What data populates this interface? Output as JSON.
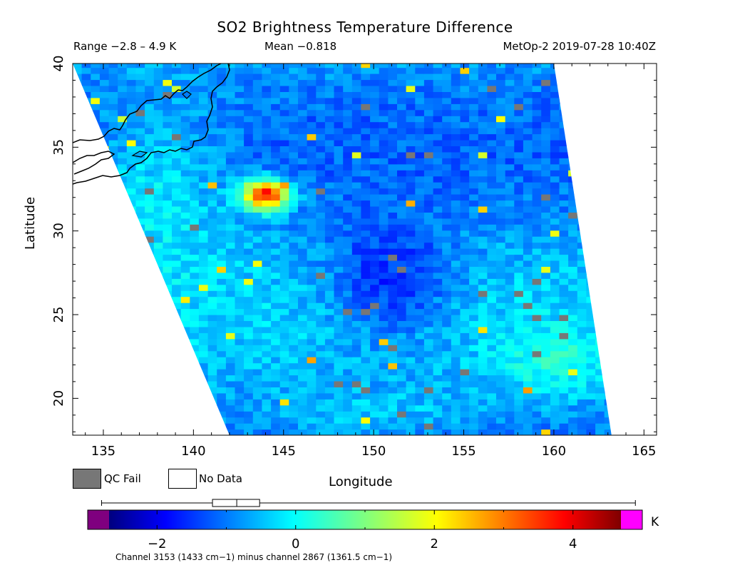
{
  "header": {
    "title": "SO2 Brightness Temperature Difference",
    "range": "Range −2.8 – 4.9 K",
    "mean": "Mean −0.818",
    "satellite_time": "MetOp-2 2019-07-28 10:40Z"
  },
  "legend": {
    "qc_fail": "QC Fail",
    "no_data": "No Data",
    "qc_color": "#777777"
  },
  "colorbar": {
    "unit": "K",
    "min": -3.0,
    "max": 5.0,
    "ticks": [
      "−2",
      "0",
      "2",
      "4"
    ],
    "tick_values": [
      -2,
      0,
      2,
      4
    ],
    "box_whisker": {
      "min": -2.8,
      "q1": -1.2,
      "median": -0.85,
      "q3": -0.52,
      "max": 4.9
    },
    "under_color": "#7f007f",
    "over_color": "#ff00ff",
    "caption": "Channel 3153 (1433 cm−1) minus channel 2867 (1361.5 cm−1)"
  },
  "chart_data": {
    "type": "heatmap",
    "title": "SO2 Brightness Temperature Difference",
    "xlabel": "Longitude",
    "ylabel": "Latitude",
    "xlim": [
      133.3,
      165.7
    ],
    "ylim": [
      17.8,
      40
    ],
    "xticks": [
      135,
      140,
      145,
      150,
      155,
      160,
      165
    ],
    "yticks": [
      20,
      25,
      30,
      35,
      40
    ],
    "xtick_labels": [
      "135",
      "140",
      "145",
      "150",
      "155",
      "160",
      "165"
    ],
    "ytick_labels": [
      "20",
      "25",
      "30",
      "35",
      "40"
    ],
    "value_range": [
      -2.8,
      4.9
    ],
    "mean": -0.818,
    "unit": "K",
    "swath_corners": {
      "top_left": [
        133.3,
        40
      ],
      "top_right": [
        160,
        40
      ],
      "bottom_right": [
        163.2,
        17.8
      ],
      "bottom_left": [
        142,
        17.8
      ]
    },
    "hotspot": {
      "lon": 144,
      "lat": 32.2,
      "value": 4.0
    }
  }
}
